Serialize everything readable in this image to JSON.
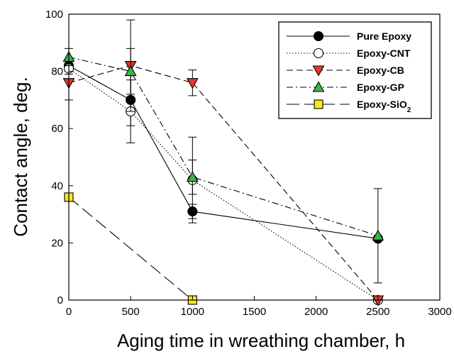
{
  "chart_data": {
    "type": "scatter",
    "title": "",
    "xlabel": "Aging time in wreathing chamber, h",
    "ylabel": "Contact angle, deg.",
    "xlim": [
      0,
      3000
    ],
    "ylim": [
      0,
      100
    ],
    "xticks": [
      "0",
      "500",
      "1000",
      "1500",
      "2000",
      "2500",
      "3000"
    ],
    "yticks": [
      "0",
      "20",
      "40",
      "60",
      "80",
      "100"
    ],
    "grid": false,
    "legend_position": "top-right",
    "series": [
      {
        "name": "Pure Epoxy",
        "line_style": "solid",
        "marker": "circle",
        "marker_fill": "#000000",
        "x": [
          0,
          500,
          1000,
          2500
        ],
        "y": [
          82,
          70,
          31,
          21.5
        ],
        "err": [
          2,
          9,
          2.5,
          0
        ]
      },
      {
        "name": "Epoxy-CNT",
        "line_style": "dotted",
        "marker": "circle",
        "marker_fill": "#ffffff",
        "x": [
          0,
          500,
          1000,
          2500
        ],
        "y": [
          81,
          66,
          42,
          0
        ],
        "err": [
          2,
          11,
          15,
          0
        ]
      },
      {
        "name": "Epoxy-CB",
        "line_style": "dashed",
        "marker": "triangle-down",
        "marker_fill": "#e8332f",
        "x": [
          0,
          500,
          1000,
          2500
        ],
        "y": [
          76,
          82,
          76,
          0
        ],
        "err": [
          6,
          16,
          4.5,
          0
        ]
      },
      {
        "name": "Epoxy-GP",
        "line_style": "dashdot",
        "marker": "triangle-up",
        "marker_fill": "#3cb44b",
        "x": [
          0,
          500,
          1000,
          2500
        ],
        "y": [
          85,
          80,
          43,
          22.5
        ],
        "err": [
          3,
          8,
          6,
          16.5
        ]
      },
      {
        "name": "Epoxy-SiO",
        "name_subscript": "2",
        "line_style": "longdash",
        "marker": "square",
        "marker_fill": "#f2ea22",
        "x": [
          0,
          1000
        ],
        "y": [
          36,
          0
        ],
        "err": [
          0,
          0
        ]
      }
    ]
  }
}
